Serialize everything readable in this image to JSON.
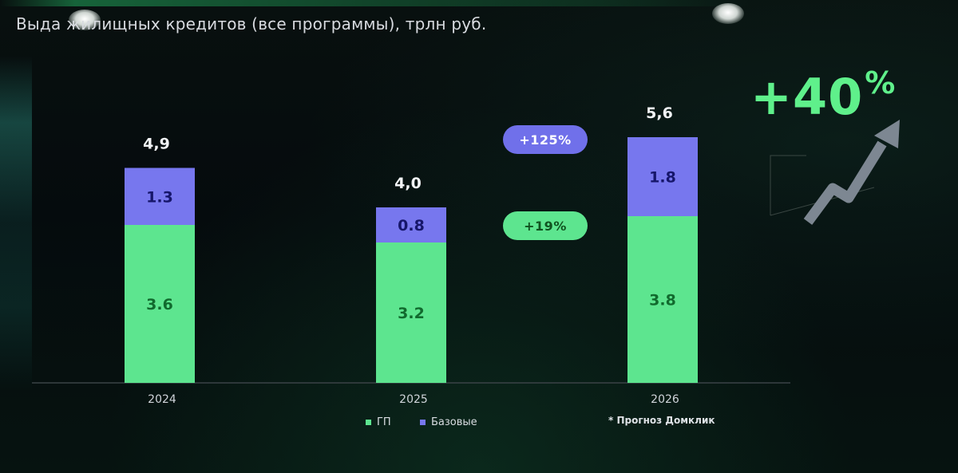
{
  "header": {
    "title": "Выда  жилищных кредитов (все программы), трлн руб."
  },
  "chart_data": {
    "type": "bar",
    "stacked": true,
    "title": "Выда  жилищных кредитов (все программы), трлн руб.",
    "categories": [
      "2024",
      "2025",
      "2026"
    ],
    "series": [
      {
        "name": "ГП",
        "values": [
          3.6,
          3.2,
          3.8
        ],
        "value_labels": [
          "3.6",
          "3.2",
          "3.8"
        ],
        "color": "#5de58f",
        "label_color": "#116a2e"
      },
      {
        "name": "Базовые",
        "values": [
          1.3,
          0.8,
          1.8
        ],
        "value_labels": [
          "1.3",
          "0.8",
          "1.8"
        ],
        "color": "#7777ee",
        "label_color": "#16166a"
      }
    ],
    "totals": [
      "4,9",
      "4,0",
      "5,6"
    ],
    "annotations": [
      {
        "text": "+125%",
        "series": "Базовые",
        "color": "#7070ea",
        "text_color": "#ffffff"
      },
      {
        "text": "+19%",
        "series": "ГП",
        "color": "#5de58f",
        "text_color": "#10521f"
      }
    ],
    "ylim": [
      0,
      6
    ],
    "grid": false,
    "legend": "bottom",
    "xlabel": "",
    "ylabel": ""
  },
  "legend": {
    "items": [
      {
        "label": "ГП",
        "color": "#5de58f"
      },
      {
        "label": "Базовые",
        "color": "#7777ee"
      }
    ]
  },
  "footnote": "* Прогноз Домклик",
  "growth_badge": {
    "value": "+40",
    "unit": "%",
    "color": "#5ff08b",
    "arrow_icon": "trend-up-arrow-icon"
  },
  "colors": {
    "background": "#050b0d",
    "axis": "#3a4247",
    "text": "#e6e9ee"
  }
}
